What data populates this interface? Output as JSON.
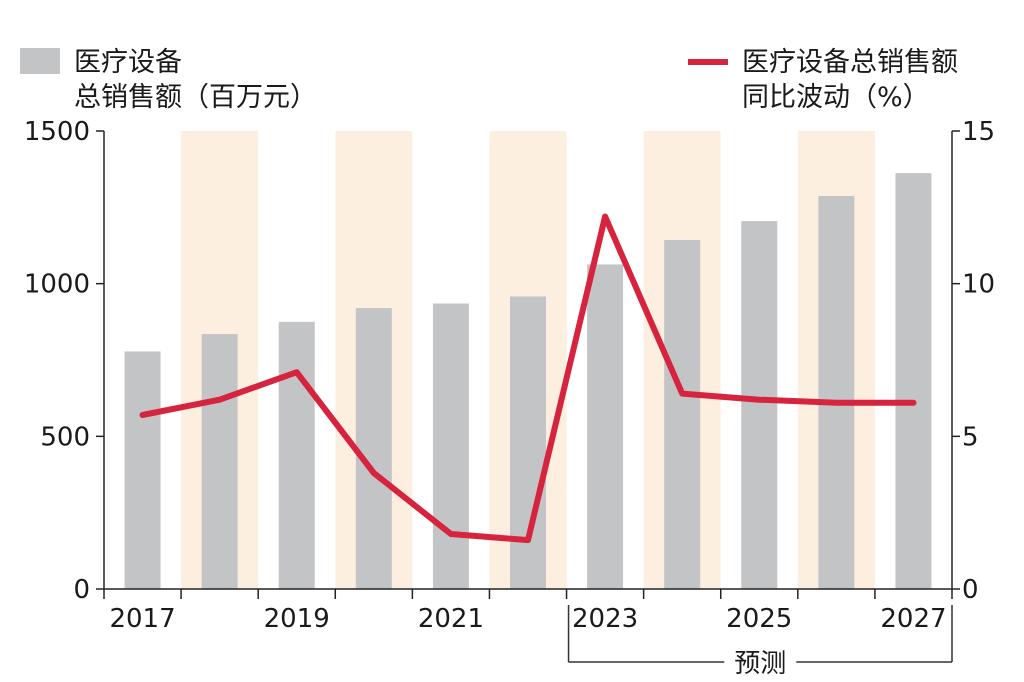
{
  "chart_data": {
    "type": "bar+line",
    "categories": [
      "2017",
      "2018",
      "2019",
      "2020",
      "2021",
      "2022",
      "2023",
      "2024",
      "2025",
      "2026",
      "2027"
    ],
    "x_tick_labels": [
      "2017",
      "2019",
      "2021",
      "2023",
      "2025",
      "2027"
    ],
    "series": [
      {
        "name": "医疗设备总销售额（百万元）",
        "type": "bar",
        "axis": "left",
        "color": "#c3c4c6",
        "values": [
          778,
          835,
          875,
          920,
          935,
          958,
          1063,
          1143,
          1205,
          1287,
          1362
        ]
      },
      {
        "name": "医疗设备总销售额同比波动（%）",
        "type": "line",
        "axis": "right",
        "color": "#d6233e",
        "values": [
          5.7,
          6.2,
          7.1,
          3.8,
          1.8,
          1.6,
          12.2,
          6.4,
          6.2,
          6.1,
          6.1
        ]
      }
    ],
    "legend": {
      "bar_label_line1": "医疗设备",
      "bar_label_line2": "总销售额（百万元）",
      "line_label_line1": "医疗设备总销售额",
      "line_label_line2": "同比波动（%）"
    },
    "y_left": {
      "ticks": [
        0,
        500,
        1000,
        1500
      ],
      "range": [
        0,
        1500
      ]
    },
    "y_right": {
      "ticks": [
        0,
        5,
        10,
        15
      ],
      "range": [
        0,
        15
      ]
    },
    "shaded_categories": [
      "2018",
      "2020",
      "2022",
      "2024",
      "2026"
    ],
    "shade_color": "#fdefe0",
    "forecast": {
      "label": "预测",
      "from": "2023",
      "to": "2027"
    }
  }
}
